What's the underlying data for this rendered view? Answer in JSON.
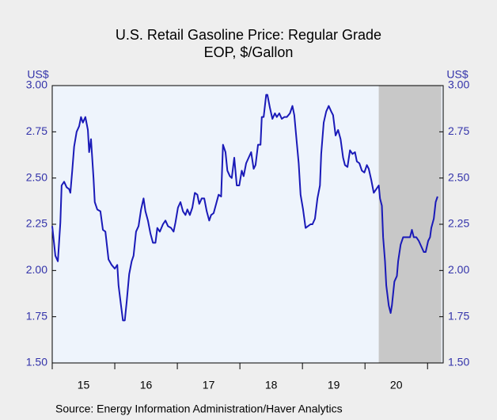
{
  "chart_data": {
    "type": "line",
    "title": "U.S. Retail Gasoline Price: Regular Grade",
    "subtitle": "EOP, $/Gallon",
    "ylabel": "US$",
    "y2label": "US$",
    "source": "Source:  Energy Information Administration/Haver Analytics",
    "color": "#1a1ab8",
    "shading": [
      {
        "start": 2020.22,
        "end": 2021.22
      }
    ],
    "xlim": [
      2015,
      2021.25
    ],
    "xticks": [
      {
        "value": 2015.5,
        "label": "15"
      },
      {
        "value": 2016.5,
        "label": "16"
      },
      {
        "value": 2017.5,
        "label": "17"
      },
      {
        "value": 2018.5,
        "label": "18"
      },
      {
        "value": 2019.5,
        "label": "19"
      },
      {
        "value": 2020.5,
        "label": "20"
      }
    ],
    "xminorticks": [
      2015,
      2016,
      2017,
      2018,
      2019,
      2020,
      2021
    ],
    "ylim": [
      1.5,
      3.0
    ],
    "yticks": [
      {
        "value": 1.5,
        "label": "1.50"
      },
      {
        "value": 1.75,
        "label": "1.75"
      },
      {
        "value": 2.0,
        "label": "2.00"
      },
      {
        "value": 2.25,
        "label": "2.25"
      },
      {
        "value": 2.5,
        "label": "2.50"
      },
      {
        "value": 2.75,
        "label": "2.75"
      },
      {
        "value": 3.0,
        "label": "3.00"
      }
    ],
    "y2lim": [
      1.5,
      3.0
    ],
    "y2ticks": [
      {
        "value": 1.5,
        "label": "1.50"
      },
      {
        "value": 1.75,
        "label": "1.75"
      },
      {
        "value": 2.0,
        "label": "2.00"
      },
      {
        "value": 2.25,
        "label": "2.25"
      },
      {
        "value": 2.5,
        "label": "2.50"
      },
      {
        "value": 2.75,
        "label": "2.75"
      },
      {
        "value": 3.0,
        "label": "3.00"
      }
    ],
    "x": [
      2015.0,
      2015.05,
      2015.09,
      2015.13,
      2015.15,
      2015.19,
      2015.23,
      2015.27,
      2015.29,
      2015.32,
      2015.35,
      2015.39,
      2015.43,
      2015.46,
      2015.49,
      2015.53,
      2015.57,
      2015.59,
      2015.62,
      2015.66,
      2015.68,
      2015.72,
      2015.77,
      2015.81,
      2015.85,
      2015.9,
      2015.95,
      2016.0,
      2016.04,
      2016.06,
      2016.1,
      2016.13,
      2016.16,
      2016.19,
      2016.23,
      2016.27,
      2016.3,
      2016.34,
      2016.38,
      2016.42,
      2016.46,
      2016.49,
      2016.53,
      2016.57,
      2016.61,
      2016.65,
      2016.68,
      2016.72,
      2016.77,
      2016.81,
      2016.85,
      2016.9,
      2016.94,
      2016.97,
      2017.01,
      2017.05,
      2017.09,
      2017.13,
      2017.16,
      2017.2,
      2017.24,
      2017.28,
      2017.32,
      2017.35,
      2017.39,
      2017.43,
      2017.47,
      2017.51,
      2017.54,
      2017.58,
      2017.62,
      2017.66,
      2017.7,
      2017.73,
      2017.77,
      2017.8,
      2017.84,
      2017.87,
      2017.91,
      2017.95,
      2017.99,
      2018.03,
      2018.06,
      2018.1,
      2018.14,
      2018.18,
      2018.22,
      2018.25,
      2018.29,
      2018.33,
      2018.35,
      2018.38,
      2018.42,
      2018.44,
      2018.48,
      2018.52,
      2018.56,
      2018.59,
      2018.63,
      2018.67,
      2018.71,
      2018.75,
      2018.8,
      2018.84,
      2018.87,
      2018.91,
      2018.94,
      2018.97,
      2019.01,
      2019.05,
      2019.09,
      2019.13,
      2019.16,
      2019.2,
      2019.24,
      2019.28,
      2019.3,
      2019.34,
      2019.38,
      2019.42,
      2019.46,
      2019.49,
      2019.53,
      2019.57,
      2019.61,
      2019.65,
      2019.68,
      2019.72,
      2019.76,
      2019.8,
      2019.84,
      2019.87,
      2019.91,
      2019.95,
      2019.99,
      2020.03,
      2020.06,
      2020.1,
      2020.14,
      2020.18,
      2020.22,
      2020.24,
      2020.27,
      2020.29,
      2020.32,
      2020.34,
      2020.38,
      2020.41,
      2020.43,
      2020.47,
      2020.51,
      2020.53,
      2020.57,
      2020.61,
      2020.65,
      2020.68,
      2020.72,
      2020.75,
      2020.78,
      2020.82,
      2020.86,
      2020.9,
      2020.94,
      2020.97,
      2021.01,
      2021.04,
      2021.06,
      2021.1,
      2021.13,
      2021.16
    ],
    "values": [
      2.24,
      2.08,
      2.05,
      2.26,
      2.46,
      2.48,
      2.45,
      2.44,
      2.42,
      2.54,
      2.67,
      2.75,
      2.78,
      2.83,
      2.8,
      2.83,
      2.76,
      2.64,
      2.71,
      2.5,
      2.37,
      2.33,
      2.32,
      2.22,
      2.21,
      2.06,
      2.03,
      2.01,
      2.03,
      1.92,
      1.81,
      1.73,
      1.73,
      1.83,
      1.98,
      2.05,
      2.08,
      2.21,
      2.24,
      2.33,
      2.39,
      2.32,
      2.27,
      2.2,
      2.15,
      2.15,
      2.23,
      2.21,
      2.25,
      2.27,
      2.24,
      2.23,
      2.21,
      2.26,
      2.34,
      2.37,
      2.32,
      2.3,
      2.33,
      2.3,
      2.34,
      2.42,
      2.41,
      2.36,
      2.39,
      2.39,
      2.32,
      2.27,
      2.3,
      2.31,
      2.36,
      2.41,
      2.4,
      2.68,
      2.64,
      2.54,
      2.51,
      2.5,
      2.61,
      2.46,
      2.46,
      2.54,
      2.51,
      2.58,
      2.61,
      2.64,
      2.55,
      2.57,
      2.68,
      2.68,
      2.83,
      2.83,
      2.95,
      2.95,
      2.88,
      2.82,
      2.85,
      2.83,
      2.85,
      2.82,
      2.83,
      2.83,
      2.85,
      2.89,
      2.84,
      2.69,
      2.58,
      2.41,
      2.33,
      2.23,
      2.24,
      2.25,
      2.25,
      2.28,
      2.39,
      2.46,
      2.63,
      2.8,
      2.86,
      2.89,
      2.86,
      2.84,
      2.73,
      2.76,
      2.71,
      2.61,
      2.57,
      2.56,
      2.65,
      2.63,
      2.64,
      2.59,
      2.58,
      2.54,
      2.53,
      2.57,
      2.55,
      2.49,
      2.42,
      2.44,
      2.46,
      2.39,
      2.35,
      2.18,
      2.05,
      1.92,
      1.81,
      1.77,
      1.81,
      1.94,
      1.97,
      2.05,
      2.14,
      2.18,
      2.18,
      2.18,
      2.18,
      2.22,
      2.18,
      2.18,
      2.16,
      2.13,
      2.1,
      2.1,
      2.16,
      2.18,
      2.23,
      2.28,
      2.37,
      2.4
    ]
  }
}
